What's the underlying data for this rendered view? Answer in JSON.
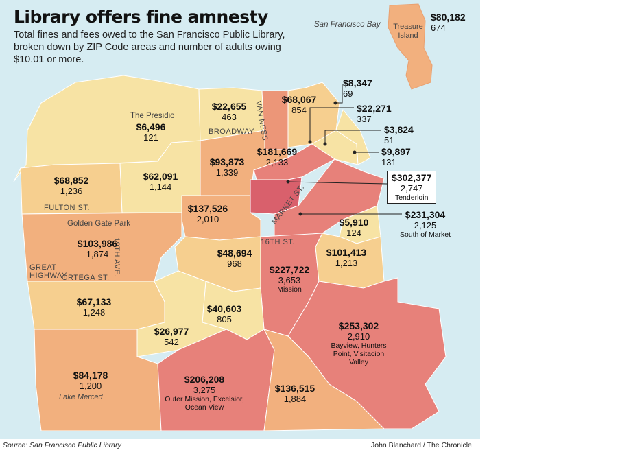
{
  "title": "Library offers fine amnesty",
  "subtitle": "Total fines and fees owed to the San Francisco Public Library, broken down by ZIP Code areas and number of adults owing $10.01 or more.",
  "colors": {
    "water": "#d6ecf2",
    "lowest": "#f7e3a4",
    "low": "#f6cf8f",
    "mid": "#f2b07e",
    "high": "#ec9678",
    "higher": "#e7817a",
    "highest": "#d9606c"
  },
  "water_labels": {
    "bay": "San Francisco Bay"
  },
  "places": {
    "presidio": "The Presidio",
    "golden_gate_park": "Golden Gate Park",
    "lake_merced": "Lake Merced",
    "treasure_island": "Treasure Island"
  },
  "streets": {
    "broadway": "BROADWAY",
    "van_ness": "VAN NESS",
    "fulton": "FULTON ST.",
    "market": "MARKET ST.",
    "sixteenth": "16TH ST.",
    "nineteenth_ave": "19TH AVE.",
    "ortega": "ORTEGA ST.",
    "great_highway": "GREAT HIGHWAY"
  },
  "zones": [
    {
      "id": "treasure-island",
      "amount": "$80,182",
      "count": "674",
      "name": ""
    },
    {
      "id": "marina",
      "amount": "$22,655",
      "count": "463",
      "name": ""
    },
    {
      "id": "presidio",
      "amount": "$6,496",
      "count": "121",
      "name": ""
    },
    {
      "id": "russian-hill",
      "amount": "$68,067",
      "count": "854",
      "name": ""
    },
    {
      "id": "north-beach-east",
      "amount": "$8,347",
      "count": "69",
      "name": ""
    },
    {
      "id": "north-beach",
      "amount": "$22,271",
      "count": "337",
      "name": ""
    },
    {
      "id": "financial-district",
      "amount": "$3,824",
      "count": "51",
      "name": ""
    },
    {
      "id": "embarcadero",
      "amount": "$9,897",
      "count": "131",
      "name": ""
    },
    {
      "id": "nob-hill",
      "amount": "$181,669",
      "count": "2,133",
      "name": ""
    },
    {
      "id": "pacific-heights",
      "amount": "$93,873",
      "count": "1,339",
      "name": ""
    },
    {
      "id": "outer-richmond",
      "amount": "$68,852",
      "count": "1,236",
      "name": ""
    },
    {
      "id": "inner-richmond",
      "amount": "$62,091",
      "count": "1,144",
      "name": ""
    },
    {
      "id": "tenderloin",
      "amount": "$302,377",
      "count": "2,747",
      "name": "Tenderloin"
    },
    {
      "id": "western-addition",
      "amount": "$137,526",
      "count": "2,010",
      "name": ""
    },
    {
      "id": "south-of-market",
      "amount": "$231,304",
      "count": "2,125",
      "name": "South of Market"
    },
    {
      "id": "mission-bay",
      "amount": "$5,910",
      "count": "124",
      "name": ""
    },
    {
      "id": "sunset",
      "amount": "$103,986",
      "count": "1,874",
      "name": ""
    },
    {
      "id": "castro",
      "amount": "$48,694",
      "count": "968",
      "name": ""
    },
    {
      "id": "potrero-hill",
      "amount": "$101,413",
      "count": "1,213",
      "name": ""
    },
    {
      "id": "mission",
      "amount": "$227,722",
      "count": "3,653",
      "name": "Mission"
    },
    {
      "id": "parkside",
      "amount": "$67,133",
      "count": "1,248",
      "name": ""
    },
    {
      "id": "glen-park",
      "amount": "$40,603",
      "count": "805",
      "name": ""
    },
    {
      "id": "west-portal",
      "amount": "$26,977",
      "count": "542",
      "name": ""
    },
    {
      "id": "bayview",
      "amount": "$253,302",
      "count": "2,910",
      "name": "Bayview, Hunters Point, Visitacion Valley"
    },
    {
      "id": "lake-merced",
      "amount": "$84,178",
      "count": "1,200",
      "name": ""
    },
    {
      "id": "outer-mission",
      "amount": "$206,208",
      "count": "3,275",
      "name": "Outer Mission, Excelsior, Ocean View"
    },
    {
      "id": "excelsior-east",
      "amount": "$136,515",
      "count": "1,884",
      "name": ""
    }
  ],
  "source": "Source: San Francisco Public Library",
  "credit": "John Blanchard / The Chronicle"
}
